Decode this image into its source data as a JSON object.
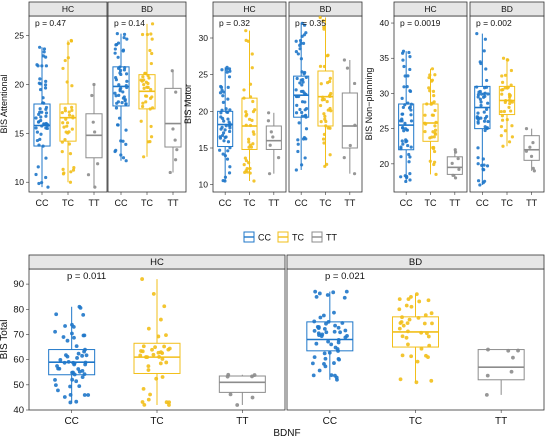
{
  "colors": {
    "CC": "#1f77c9",
    "TC": "#f2bf1a",
    "TT": "#8c8c8c"
  },
  "legend": {
    "items": [
      "CC",
      "TC",
      "TT"
    ]
  },
  "x_axis_title": "BDNF",
  "chart_data": [
    {
      "id": "attentional",
      "type": "boxplot",
      "ylabel": "BIS Attentional",
      "ylim": [
        9,
        27
      ],
      "yticks": [
        10,
        15,
        20,
        25
      ],
      "categories": [
        "CC",
        "TC",
        "TT"
      ],
      "facets": [
        {
          "name": "HC",
          "annotation": "p = 0.47",
          "boxes": {
            "CC": {
              "min": 9.5,
              "q1": 13.7,
              "median": 15.8,
              "q3": 18.0,
              "max": 23.8
            },
            "TC": {
              "min": 10.0,
              "q1": 14.2,
              "median": 16.6,
              "q3": 18.0,
              "max": 24.5
            },
            "TT": {
              "min": 9.5,
              "q1": 12.5,
              "median": 14.8,
              "q3": 17.0,
              "max": 20.0
            }
          }
        },
        {
          "name": "BD",
          "annotation": "p = 0.14",
          "boxes": {
            "CC": {
              "min": 12.2,
              "q1": 17.8,
              "median": 19.8,
              "q3": 21.8,
              "max": 25.2
            },
            "TC": {
              "min": 12.6,
              "q1": 17.5,
              "median": 19.3,
              "q3": 21.0,
              "max": 26.2
            },
            "TT": {
              "min": 11.0,
              "q1": 13.6,
              "median": 16.0,
              "q3": 19.6,
              "max": 21.4
            }
          }
        }
      ]
    },
    {
      "id": "motor",
      "type": "boxplot",
      "ylabel": "BIS Motor",
      "ylim": [
        9,
        33
      ],
      "yticks": [
        10,
        15,
        20,
        25,
        30
      ],
      "categories": [
        "CC",
        "TC",
        "TT"
      ],
      "facets": [
        {
          "name": "HC",
          "annotation": "p = 0.32",
          "boxes": {
            "CC": {
              "min": 10.5,
              "q1": 15.2,
              "median": 18.2,
              "q3": 20.0,
              "max": 26.0
            },
            "TC": {
              "min": 10.5,
              "q1": 14.8,
              "median": 18.0,
              "q3": 21.8,
              "max": 31.0
            },
            "TT": {
              "min": 11.5,
              "q1": 14.8,
              "median": 16.0,
              "q3": 18.0,
              "max": 19.8
            }
          }
        },
        {
          "name": "BD",
          "annotation": "p = 0.35",
          "boxes": {
            "CC": {
              "min": 12.0,
              "q1": 19.2,
              "median": 22.2,
              "q3": 24.8,
              "max": 32.0
            },
            "TC": {
              "min": 12.5,
              "q1": 18.0,
              "median": 22.0,
              "q3": 25.5,
              "max": 32.8
            },
            "TT": {
              "min": 11.5,
              "q1": 15.0,
              "median": 18.0,
              "q3": 22.5,
              "max": 27.0
            }
          }
        }
      ]
    },
    {
      "id": "nonplanning",
      "type": "boxplot",
      "ylabel": "BIS Non−planning",
      "ylim": [
        16,
        41
      ],
      "yticks": [
        20,
        25,
        30,
        35,
        40
      ],
      "categories": [
        "CC",
        "TC",
        "TT"
      ],
      "facets": [
        {
          "name": "HC",
          "annotation": "p = 0.0019",
          "boxes": {
            "CC": {
              "min": 17.5,
              "q1": 22.0,
              "median": 25.5,
              "q3": 28.5,
              "max": 36.0
            },
            "TC": {
              "min": 18.5,
              "q1": 23.2,
              "median": 25.8,
              "q3": 28.5,
              "max": 33.5
            },
            "TT": {
              "min": 18.0,
              "q1": 18.5,
              "median": 19.5,
              "q3": 21.0,
              "max": 22.0
            }
          }
        },
        {
          "name": "BD",
          "annotation": "p = 0.002",
          "boxes": {
            "CC": {
              "min": 17.0,
              "q1": 25.0,
              "median": 28.0,
              "q3": 31.0,
              "max": 38.5
            },
            "TC": {
              "min": 22.5,
              "q1": 27.0,
              "median": 29.0,
              "q3": 31.0,
              "max": 35.0
            },
            "TT": {
              "min": 19.0,
              "q1": 20.5,
              "median": 22.0,
              "q3": 24.0,
              "max": 25.0
            }
          }
        }
      ]
    },
    {
      "id": "total",
      "type": "boxplot",
      "ylabel": "BIS Total",
      "ylim": [
        40,
        96
      ],
      "yticks": [
        40,
        50,
        60,
        70,
        80,
        90
      ],
      "categories": [
        "CC",
        "TC",
        "TT"
      ],
      "facets": [
        {
          "name": "HC",
          "annotation": "p = 0.011",
          "boxes": {
            "CC": {
              "min": 43,
              "q1": 54,
              "median": 59,
              "q3": 64,
              "max": 81
            },
            "TC": {
              "min": 42,
              "q1": 54.5,
              "median": 61,
              "q3": 66.5,
              "max": 92
            },
            "TT": {
              "min": 42,
              "q1": 47,
              "median": 51,
              "q3": 53.5,
              "max": 54
            }
          }
        },
        {
          "name": "BD",
          "annotation": "p = 0.021",
          "boxes": {
            "CC": {
              "min": 52,
              "q1": 63.5,
              "median": 68,
              "q3": 75,
              "max": 87
            },
            "TC": {
              "min": 51,
              "q1": 65,
              "median": 71,
              "q3": 77,
              "max": 86
            },
            "TT": {
              "min": 46,
              "q1": 52,
              "median": 57,
              "q3": 64,
              "max": 64
            }
          }
        }
      ]
    }
  ]
}
